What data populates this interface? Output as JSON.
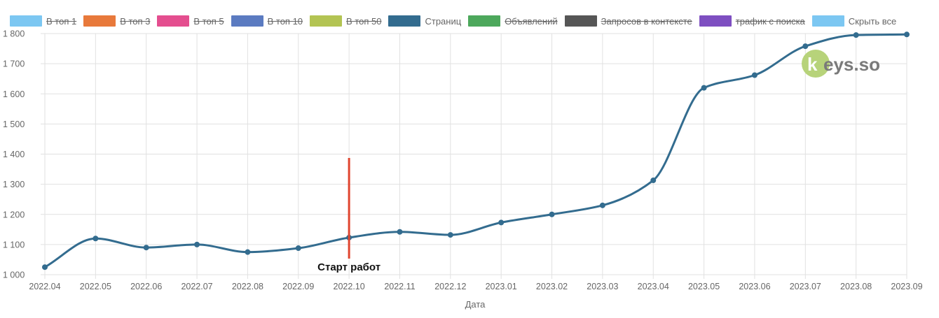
{
  "legend": [
    {
      "label": "В топ 1",
      "color": "#7cc7f2",
      "hidden": true
    },
    {
      "label": "В топ 3",
      "color": "#e8793b",
      "hidden": true
    },
    {
      "label": "В топ 5",
      "color": "#e44e8f",
      "hidden": true
    },
    {
      "label": "В топ 10",
      "color": "#5b7bc1",
      "hidden": true
    },
    {
      "label": "В топ 50",
      "color": "#b3c453",
      "hidden": true
    },
    {
      "label": "Страниц",
      "color": "#336c8f",
      "hidden": false
    },
    {
      "label": "Объявлений",
      "color": "#4da85c",
      "hidden": true
    },
    {
      "label": "Запросов в контексте",
      "color": "#565656",
      "hidden": true
    },
    {
      "label": "трафик с поиска",
      "color": "#7e4fc1",
      "hidden": true
    },
    {
      "label": "Скрыть все",
      "color": "#7cc7f2",
      "hidden": false
    }
  ],
  "chart_data": {
    "type": "line",
    "x": [
      "2022.04",
      "2022.05",
      "2022.06",
      "2022.07",
      "2022.08",
      "2022.09",
      "2022.10",
      "2022.11",
      "2022.12",
      "2023.01",
      "2023.02",
      "2023.03",
      "2023.04",
      "2023.05",
      "2023.06",
      "2023.07",
      "2023.08",
      "2023.09"
    ],
    "series": [
      {
        "name": "Страниц",
        "color": "#336c8f",
        "values": [
          1025,
          1120,
          1090,
          1100,
          1075,
          1088,
          1123,
          1142,
          1132,
          1173,
          1200,
          1230,
          1313,
          1620,
          1662,
          1758,
          1795,
          1797
        ]
      }
    ],
    "yticks": [
      "1 000",
      "1 100",
      "1 200",
      "1 300",
      "1 400",
      "1 500",
      "1 600",
      "1 700",
      "1 800"
    ],
    "ylim": [
      1000,
      1800
    ],
    "xlabel": "Дата",
    "ylabel": "",
    "grid": true,
    "legend_position": "top",
    "annotation": {
      "label": "Старт работ",
      "x": "2022.10",
      "color": "#e0452f"
    }
  },
  "watermark": {
    "text": "eys.so",
    "prefix": "k",
    "color": "#b7d37a"
  }
}
